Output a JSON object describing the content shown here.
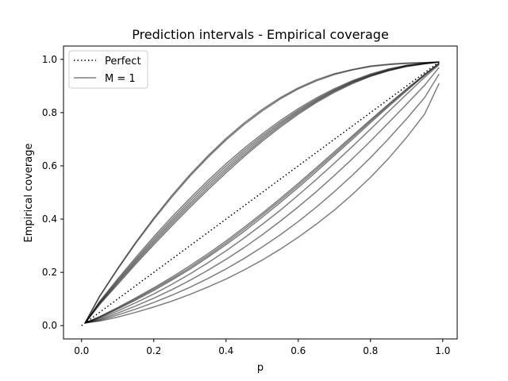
{
  "chart_data": {
    "type": "line",
    "title": "Prediction intervals - Empirical coverage",
    "xlabel": "p",
    "ylabel": "Empirical coverage",
    "xlim": [
      -0.05,
      1.04
    ],
    "ylim": [
      -0.05,
      1.05
    ],
    "xticks": [
      {
        "value": 0.0,
        "label": "0.0"
      },
      {
        "value": 0.2,
        "label": "0.2"
      },
      {
        "value": 0.4,
        "label": "0.4"
      },
      {
        "value": 0.6,
        "label": "0.6"
      },
      {
        "value": 0.8,
        "label": "0.8"
      },
      {
        "value": 1.0,
        "label": "1.0"
      }
    ],
    "yticks": [
      {
        "value": 0.0,
        "label": "0.0"
      },
      {
        "value": 0.2,
        "label": "0.2"
      },
      {
        "value": 0.4,
        "label": "0.4"
      },
      {
        "value": 0.6,
        "label": "0.6"
      },
      {
        "value": 0.8,
        "label": "0.8"
      },
      {
        "value": 1.0,
        "label": "1.0"
      }
    ],
    "grid": false,
    "legend": {
      "placement": "top-left",
      "entries": [
        {
          "label": "Perfect",
          "style": "dotted",
          "color": "#000000"
        },
        {
          "label": "M = 1",
          "style": "solid",
          "color": "#808080"
        }
      ]
    },
    "reference_line": {
      "x": [
        0.0,
        0.99
      ],
      "y": [
        0.0,
        0.99
      ],
      "color": "#000000",
      "style": "dotted"
    },
    "series_color": "#000000",
    "series_opacity": 0.5,
    "x": [
      0.01,
      0.05,
      0.1,
      0.15,
      0.2,
      0.25,
      0.3,
      0.35,
      0.4,
      0.45,
      0.5,
      0.55,
      0.6,
      0.65,
      0.7,
      0.75,
      0.8,
      0.85,
      0.9,
      0.95,
      0.99
    ],
    "series": [
      {
        "values": [
          0.011,
          0.111,
          0.215,
          0.313,
          0.404,
          0.489,
          0.567,
          0.638,
          0.703,
          0.761,
          0.812,
          0.856,
          0.893,
          0.923,
          0.946,
          0.962,
          0.975,
          0.982,
          0.986,
          0.988,
          0.99
        ]
      },
      {
        "values": [
          0.011,
          0.109,
          0.212,
          0.309,
          0.399,
          0.483,
          0.561,
          0.632,
          0.697,
          0.755,
          0.806,
          0.851,
          0.889,
          0.919,
          0.943,
          0.96,
          0.973,
          0.98,
          0.985,
          0.987,
          0.99
        ]
      },
      {
        "values": [
          0.01,
          0.091,
          0.175,
          0.256,
          0.334,
          0.408,
          0.478,
          0.545,
          0.608,
          0.666,
          0.72,
          0.77,
          0.815,
          0.855,
          0.89,
          0.92,
          0.945,
          0.964,
          0.978,
          0.986,
          0.99
        ]
      },
      {
        "values": [
          0.01,
          0.088,
          0.17,
          0.249,
          0.326,
          0.399,
          0.469,
          0.536,
          0.599,
          0.658,
          0.713,
          0.763,
          0.809,
          0.85,
          0.886,
          0.917,
          0.942,
          0.962,
          0.977,
          0.985,
          0.99
        ]
      },
      {
        "values": [
          0.01,
          0.085,
          0.165,
          0.243,
          0.318,
          0.391,
          0.46,
          0.527,
          0.59,
          0.65,
          0.706,
          0.757,
          0.804,
          0.846,
          0.883,
          0.915,
          0.94,
          0.96,
          0.975,
          0.984,
          0.99
        ]
      },
      {
        "values": [
          0.01,
          0.082,
          0.16,
          0.237,
          0.311,
          0.383,
          0.452,
          0.518,
          0.582,
          0.642,
          0.699,
          0.751,
          0.799,
          0.842,
          0.88,
          0.912,
          0.938,
          0.958,
          0.974,
          0.984,
          0.99
        ]
      },
      {
        "values": [
          0.01,
          0.079,
          0.155,
          0.231,
          0.304,
          0.375,
          0.444,
          0.51,
          0.574,
          0.635,
          0.692,
          0.745,
          0.794,
          0.838,
          0.876,
          0.909,
          0.936,
          0.957,
          0.973,
          0.983,
          0.99
        ]
      },
      {
        "values": [
          0.01,
          0.034,
          0.068,
          0.104,
          0.142,
          0.182,
          0.225,
          0.27,
          0.318,
          0.369,
          0.422,
          0.477,
          0.534,
          0.593,
          0.653,
          0.713,
          0.773,
          0.832,
          0.889,
          0.944,
          0.985
        ]
      },
      {
        "values": [
          0.01,
          0.032,
          0.065,
          0.1,
          0.137,
          0.176,
          0.218,
          0.263,
          0.311,
          0.362,
          0.415,
          0.47,
          0.527,
          0.586,
          0.646,
          0.707,
          0.768,
          0.828,
          0.886,
          0.942,
          0.985
        ]
      },
      {
        "values": [
          0.01,
          0.03,
          0.062,
          0.096,
          0.132,
          0.171,
          0.212,
          0.257,
          0.304,
          0.354,
          0.407,
          0.462,
          0.519,
          0.578,
          0.639,
          0.7,
          0.762,
          0.823,
          0.882,
          0.94,
          0.985
        ]
      },
      {
        "values": [
          0.01,
          0.027,
          0.055,
          0.086,
          0.119,
          0.155,
          0.194,
          0.236,
          0.281,
          0.329,
          0.38,
          0.433,
          0.49,
          0.549,
          0.61,
          0.673,
          0.738,
          0.804,
          0.869,
          0.933,
          0.98
        ]
      },
      {
        "values": [
          0.01,
          0.023,
          0.047,
          0.074,
          0.103,
          0.135,
          0.17,
          0.208,
          0.249,
          0.293,
          0.341,
          0.392,
          0.446,
          0.503,
          0.564,
          0.627,
          0.693,
          0.762,
          0.832,
          0.903,
          0.97
        ]
      },
      {
        "values": [
          0.01,
          0.02,
          0.04,
          0.062,
          0.087,
          0.114,
          0.144,
          0.177,
          0.213,
          0.252,
          0.295,
          0.341,
          0.391,
          0.445,
          0.503,
          0.565,
          0.631,
          0.702,
          0.777,
          0.857,
          0.945
        ]
      },
      {
        "values": [
          0.01,
          0.017,
          0.032,
          0.05,
          0.07,
          0.092,
          0.117,
          0.145,
          0.175,
          0.209,
          0.246,
          0.287,
          0.332,
          0.381,
          0.434,
          0.493,
          0.557,
          0.628,
          0.707,
          0.795,
          0.91
        ]
      }
    ]
  }
}
